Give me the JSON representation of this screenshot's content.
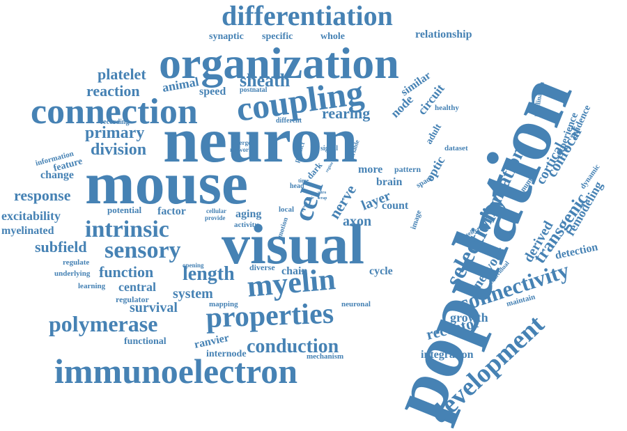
{
  "cloud": {
    "color": "#4682b4",
    "words": [
      "population",
      "neuron",
      "mouse",
      "visual",
      "organization",
      "connection",
      "coupling",
      "differentiation",
      "immunoelectron",
      "properties",
      "myelin",
      "intrinsic",
      "sensory",
      "polymerase",
      "conduction",
      "development",
      "connectivity",
      "selectivity",
      "orientation",
      "transgenic",
      "cell",
      "length",
      "function",
      "sheath",
      "platelet",
      "reaction",
      "primary",
      "division",
      "response",
      "excitability",
      "myelinated",
      "subfield",
      "rearing",
      "nerve",
      "layer",
      "axon",
      "survival",
      "system",
      "central",
      "chain",
      "receptor",
      "growth",
      "integration",
      "nervous",
      "derived",
      "cortical",
      "confocal",
      "remodeling",
      "experience",
      "evidence",
      "detection",
      "circuit",
      "node",
      "similar",
      "relationship",
      "synaptic",
      "specific",
      "whole",
      "animal",
      "speed",
      "change",
      "feature",
      "information",
      "potential",
      "factor",
      "aging",
      "activity",
      "cellular",
      "provide",
      "motion",
      "local",
      "diverse",
      "cycle",
      "count",
      "pattern",
      "brain",
      "space",
      "optic",
      "adult",
      "dataset",
      "more",
      "dark",
      "head",
      "time",
      "signal",
      "variable",
      "predict",
      "emerge",
      "network",
      "different",
      "recording",
      "postnatal",
      "healthy",
      "myelination",
      "number",
      "dynamic",
      "selective",
      "individual",
      "maintain",
      "image",
      "neuronal",
      "mapping",
      "regulator",
      "learning",
      "underlying",
      "regulate",
      "opening",
      "functional",
      "ranvier",
      "internode",
      "mechanism",
      "region",
      "power",
      "vitro",
      "wrap",
      "pair"
    ]
  }
}
